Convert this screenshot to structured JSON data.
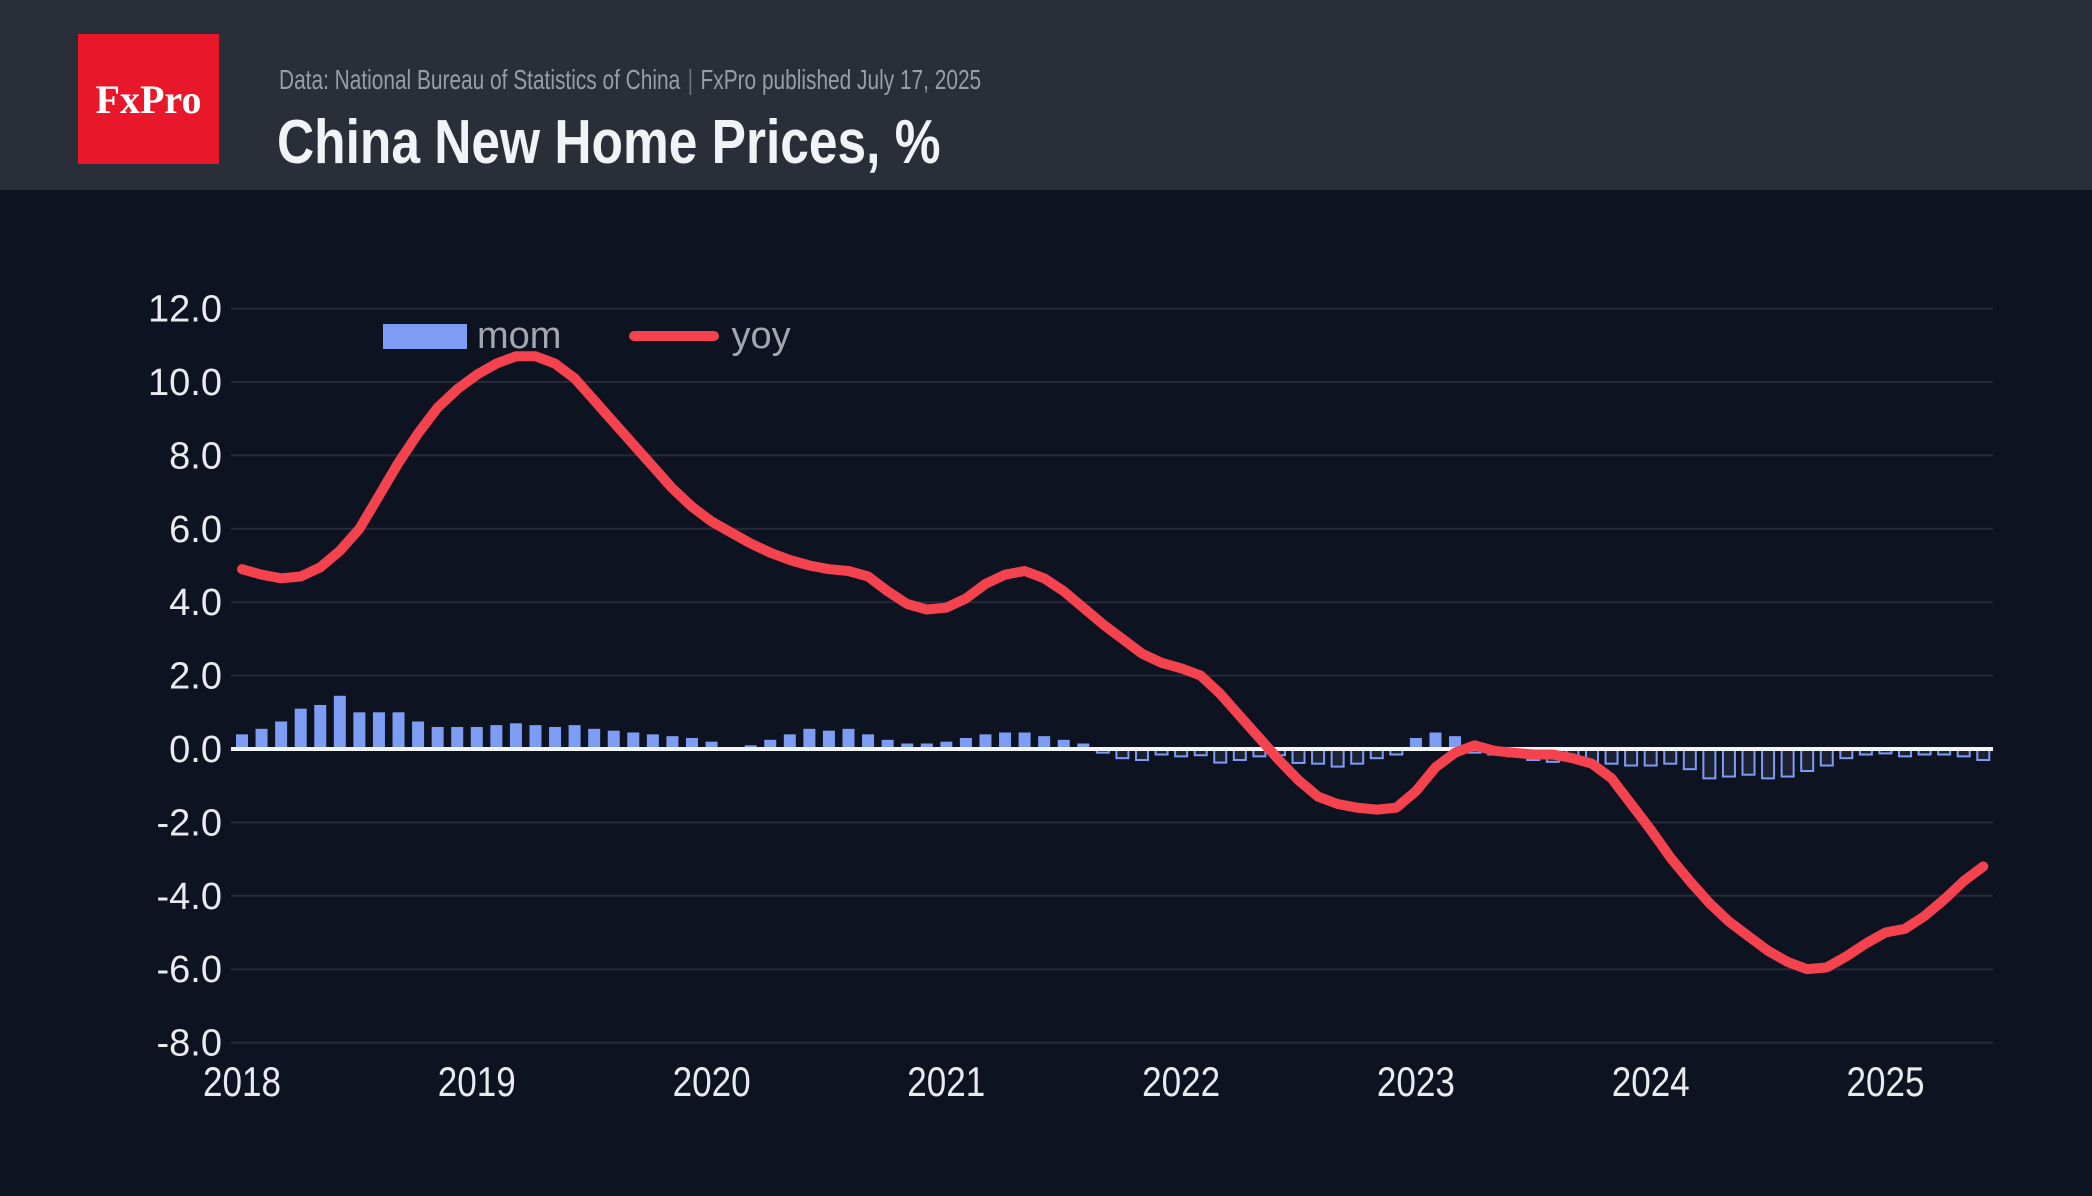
{
  "header": {
    "logo_text": "FxPro",
    "source_text": "Data: National Bureau of Statistics of China",
    "separator": "|",
    "published_text": "FxPro published July 17, 2025",
    "title": "China New Home Prices, %"
  },
  "legend": {
    "mom_label": "mom",
    "yoy_label": "yoy"
  },
  "colors": {
    "page_bg": "#0e1322",
    "header_bg": "#2a2e38",
    "logo_bg": "#e8182a",
    "logo_text_color": "#ffffff",
    "title_color": "#f2f3f6",
    "subtitle_color": "#9a9da5",
    "mom_blue": "#7d9cf4",
    "yoy_red": "#f4434f",
    "negative_bar_fill": "#1d2233",
    "gridline_color": "#252b38",
    "zero_line_color": "#f3f4f6",
    "axis_label_color": "#e9ebef",
    "legend_text_color": "#a4a7ae"
  },
  "chart_data": {
    "type": "bar+line",
    "title": "China New Home Prices, %",
    "x_start": "2018-01",
    "x_end": "2025-06",
    "x_frequency": "monthly",
    "x_tick_labels": [
      "2018",
      "2019",
      "2020",
      "2021",
      "2022",
      "2023",
      "2024",
      "2025"
    ],
    "y_tick_labels": [
      "12.0",
      "10.0",
      "8.0",
      "6.0",
      "4.0",
      "2.0",
      "0.0",
      "-2.0",
      "-4.0",
      "-6.0",
      "-8.0"
    ],
    "ylim": [
      -8,
      12
    ],
    "grid": true,
    "legend_position": "top-left",
    "series": [
      {
        "name": "mom",
        "type": "bar",
        "color": "#7d9cf4",
        "values": [
          0.4,
          0.55,
          0.75,
          1.1,
          1.2,
          1.45,
          1.0,
          1.0,
          1.0,
          0.75,
          0.6,
          0.6,
          0.6,
          0.65,
          0.7,
          0.65,
          0.6,
          0.65,
          0.55,
          0.5,
          0.45,
          0.4,
          0.35,
          0.3,
          0.2,
          0.05,
          0.1,
          0.25,
          0.4,
          0.55,
          0.5,
          0.55,
          0.4,
          0.25,
          0.15,
          0.15,
          0.2,
          0.3,
          0.4,
          0.45,
          0.45,
          0.35,
          0.25,
          0.15,
          -0.1,
          -0.25,
          -0.3,
          -0.15,
          -0.2,
          -0.17,
          -0.37,
          -0.3,
          -0.2,
          -0.17,
          -0.38,
          -0.4,
          -0.48,
          -0.4,
          -0.25,
          -0.15,
          0.3,
          0.45,
          0.35,
          -0.1,
          -0.15,
          -0.2,
          -0.3,
          -0.35,
          -0.3,
          -0.35,
          -0.4,
          -0.45,
          -0.45,
          -0.4,
          -0.55,
          -0.8,
          -0.75,
          -0.7,
          -0.8,
          -0.75,
          -0.6,
          -0.45,
          -0.25,
          -0.15,
          -0.12,
          -0.2,
          -0.15,
          -0.15,
          -0.2,
          -0.3
        ]
      },
      {
        "name": "yoy",
        "type": "line",
        "color": "#f4434f",
        "values": [
          4.9,
          4.75,
          4.65,
          4.7,
          4.95,
          5.4,
          6.0,
          6.9,
          7.8,
          8.6,
          9.3,
          9.8,
          10.2,
          10.5,
          10.7,
          10.7,
          10.5,
          10.1,
          9.5,
          8.9,
          8.3,
          7.7,
          7.1,
          6.6,
          6.2,
          5.9,
          5.6,
          5.35,
          5.15,
          5.0,
          4.9,
          4.85,
          4.7,
          4.3,
          3.95,
          3.8,
          3.85,
          4.1,
          4.5,
          4.75,
          4.85,
          4.65,
          4.3,
          3.85,
          3.4,
          3.0,
          2.6,
          2.35,
          2.2,
          2.0,
          1.5,
          0.9,
          0.3,
          -0.3,
          -0.85,
          -1.3,
          -1.5,
          -1.6,
          -1.65,
          -1.6,
          -1.15,
          -0.5,
          -0.1,
          0.1,
          -0.05,
          -0.1,
          -0.15,
          -0.15,
          -0.25,
          -0.4,
          -0.8,
          -1.5,
          -2.2,
          -2.95,
          -3.6,
          -4.2,
          -4.7,
          -5.1,
          -5.5,
          -5.8,
          -6.0,
          -5.95,
          -5.65,
          -5.3,
          -5.0,
          -4.9,
          -4.55,
          -4.1,
          -3.6,
          -3.2
        ]
      }
    ]
  }
}
